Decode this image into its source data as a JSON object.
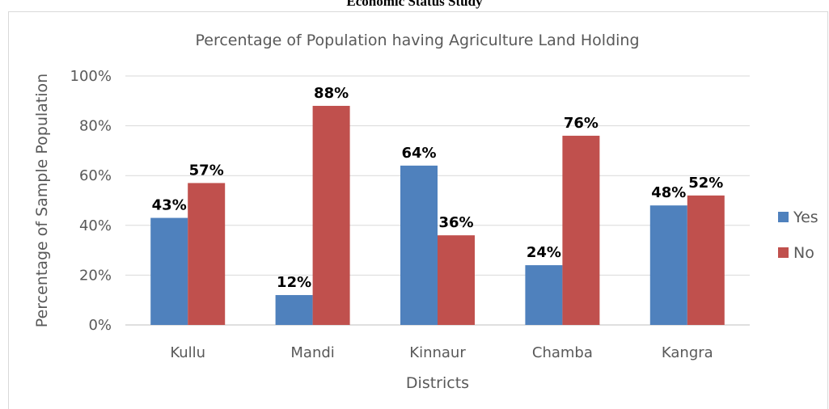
{
  "page": {
    "header": "Economic Status Study"
  },
  "chart_data": {
    "type": "bar",
    "title": "Percentage of Population having Agriculture Land Holding",
    "xlabel": "Districts",
    "ylabel": "Percentage of Sample Population",
    "categories": [
      "Kullu",
      "Mandi",
      "Kinnaur",
      "Chamba",
      "Kangra"
    ],
    "series": [
      {
        "name": "Yes",
        "values": [
          43,
          12,
          64,
          24,
          48
        ],
        "labels": [
          "43%",
          "12%",
          "64%",
          "24%",
          "48%"
        ],
        "color": "#4f81bd"
      },
      {
        "name": "No",
        "values": [
          57,
          88,
          36,
          76,
          52
        ],
        "labels": [
          "57%",
          "88%",
          "36%",
          "76%",
          "52%"
        ],
        "color": "#c0504d"
      }
    ],
    "ylim": [
      0,
      100
    ],
    "yticks": [
      0,
      20,
      40,
      60,
      80,
      100
    ],
    "ytick_labels": [
      "0%",
      "20%",
      "40%",
      "60%",
      "80%",
      "100%"
    ],
    "grid": true,
    "legend_position": "right"
  }
}
